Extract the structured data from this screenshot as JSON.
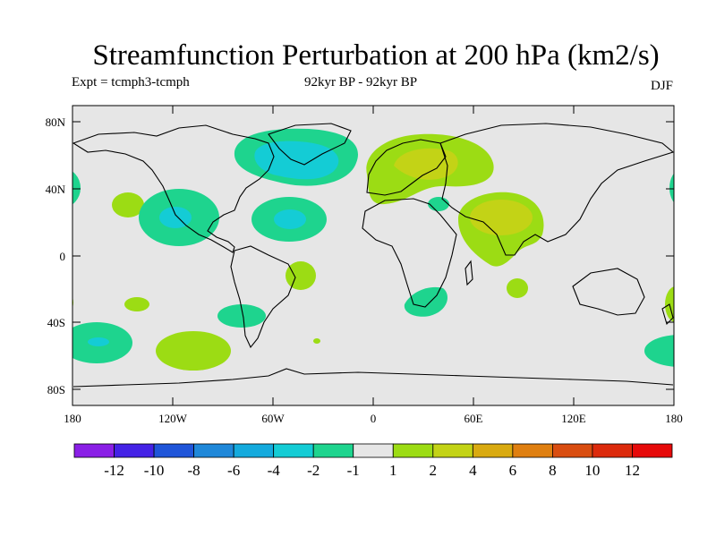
{
  "title": "Streamfunction Perturbation at 200 hPa (km2/s)",
  "experiment": "Expt = tcmph3-tcmph",
  "period": "92kyr BP - 92kyr BP",
  "season": "DJF",
  "map": {
    "projection": "cylindrical equidistant",
    "lon_range": [
      -180,
      180
    ],
    "lat_range": [
      -90,
      90
    ],
    "background_color": "#e6e6e6",
    "lat_ticks": [
      {
        "value": 80,
        "label": "80N"
      },
      {
        "value": 40,
        "label": "40N"
      },
      {
        "value": 0,
        "label": "0"
      },
      {
        "value": -40,
        "label": "40S"
      },
      {
        "value": -80,
        "label": "80S"
      }
    ],
    "lon_ticks": [
      {
        "value": -180,
        "label": "180"
      },
      {
        "value": -120,
        "label": "120W"
      },
      {
        "value": -60,
        "label": "60W"
      },
      {
        "value": 0,
        "label": "0"
      },
      {
        "value": 60,
        "label": "60E"
      },
      {
        "value": 120,
        "label": "120E"
      },
      {
        "value": 180,
        "label": "180"
      }
    ]
  },
  "colorbar": {
    "labels": [
      "-12",
      "-10",
      "-8",
      "-6",
      "-4",
      "-2",
      "-1",
      "1",
      "2",
      "4",
      "6",
      "8",
      "10",
      "12"
    ],
    "colors": [
      "#8a1fe6",
      "#4422e6",
      "#1f55d9",
      "#1f88d9",
      "#14aadd",
      "#14ccd5",
      "#1ed48e",
      "#e6e6e6",
      "#9cdc14",
      "#c3d316",
      "#d9aa10",
      "#df7f10",
      "#d94d10",
      "#dc2a0c",
      "#e60a0a"
    ]
  },
  "contours": [
    {
      "name": "north-atlantic-low",
      "level": "-4",
      "color": "#14ccd5",
      "lon": -40,
      "lat": 62
    },
    {
      "name": "mexico-low",
      "level": "-4",
      "color": "#14aadd",
      "lon": -112,
      "lat": 25
    },
    {
      "name": "eurasia-high",
      "level": "4",
      "color": "#c3d316",
      "lon": 40,
      "lat": 52
    },
    {
      "name": "south-asia-high",
      "level": "4",
      "color": "#c3d316",
      "lon": 75,
      "lat": 22
    },
    {
      "name": "north-pacific-high",
      "level": "2",
      "color": "#9cdc14",
      "lon": -150,
      "lat": 32
    },
    {
      "name": "south-pacific-high",
      "level": "2",
      "color": "#9cdc14",
      "lon": -115,
      "lat": -48
    },
    {
      "name": "south-pacific-low",
      "level": "-4",
      "color": "#14ccd5",
      "lon": -165,
      "lat": -48
    }
  ]
}
